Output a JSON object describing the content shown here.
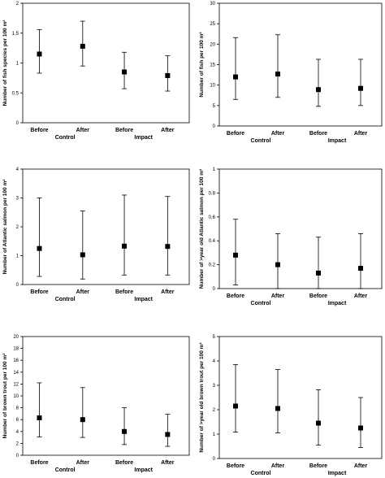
{
  "chart_data": [
    {
      "type": "scatter",
      "ylabel": "Number of fish species per 100 m²",
      "ylim": [
        0,
        2
      ],
      "yticks": [
        "0",
        "0.5",
        "1",
        "1.5",
        "2"
      ],
      "categories": [
        "Before",
        "After",
        "Before",
        "After"
      ],
      "groups": [
        "Control",
        "Impact"
      ],
      "values": [
        1.15,
        1.28,
        0.85,
        0.79
      ],
      "err_low": [
        0.83,
        0.95,
        0.57,
        0.53
      ],
      "err_high": [
        1.56,
        1.7,
        1.18,
        1.12
      ]
    },
    {
      "type": "scatter",
      "ylabel": "Number of fish per 100 m²",
      "ylim": [
        0,
        30
      ],
      "yticks": [
        "0",
        "5",
        "10",
        "15",
        "20",
        "25",
        "30"
      ],
      "categories": [
        "Before",
        "After",
        "Before",
        "After"
      ],
      "groups": [
        "Control",
        "Impact"
      ],
      "values": [
        12.0,
        12.7,
        8.9,
        9.2
      ],
      "err_low": [
        6.5,
        7.0,
        4.8,
        5.0
      ],
      "err_high": [
        21.6,
        22.3,
        16.3,
        16.3
      ]
    },
    {
      "type": "scatter",
      "ylabel": "Number of Atlantic salmon per 100 m²",
      "ylim": [
        0,
        4
      ],
      "yticks": [
        "0",
        "1",
        "2",
        "3",
        "4"
      ],
      "categories": [
        "Before",
        "After",
        "Before",
        "After"
      ],
      "groups": [
        "Control",
        "Impact"
      ],
      "values": [
        1.25,
        1.03,
        1.33,
        1.32
      ],
      "err_low": [
        0.28,
        0.19,
        0.33,
        0.33
      ],
      "err_high": [
        3.0,
        2.55,
        3.1,
        3.05
      ]
    },
    {
      "type": "scatter",
      "ylabel": "Number of >year old Atlantic salmon per 100 m²",
      "ylim": [
        0,
        1
      ],
      "yticks": [
        "0",
        "0.2",
        "0.4",
        "0.6",
        "0.8",
        "1"
      ],
      "categories": [
        "Before",
        "After",
        "Before",
        "After"
      ],
      "groups": [
        "Control",
        "Impact"
      ],
      "values": [
        0.28,
        0.2,
        0.13,
        0.17
      ],
      "err_low": [
        0.03,
        0.0,
        0.0,
        0.0
      ],
      "err_high": [
        0.58,
        0.46,
        0.43,
        0.46
      ]
    },
    {
      "type": "scatter",
      "ylabel": "Number of brown trout per 100 m²",
      "ylim": [
        0,
        20
      ],
      "yticks": [
        "0",
        "2",
        "4",
        "6",
        "8",
        "10",
        "12",
        "14",
        "16",
        "18",
        "20"
      ],
      "categories": [
        "Before",
        "After",
        "Before",
        "After"
      ],
      "groups": [
        "Control",
        "Impact"
      ],
      "values": [
        6.3,
        6.0,
        4.0,
        3.5
      ],
      "err_low": [
        3.1,
        3.0,
        1.8,
        1.5
      ],
      "err_high": [
        12.2,
        11.4,
        8.0,
        6.9
      ]
    },
    {
      "type": "scatter",
      "ylabel": "Number of >year old brown trout per 100 m²",
      "ylim": [
        0,
        5
      ],
      "yticks": [
        "0",
        "1",
        "2",
        "3",
        "4",
        "5"
      ],
      "categories": [
        "Before",
        "After",
        "Before",
        "After"
      ],
      "groups": [
        "Control",
        "Impact"
      ],
      "values": [
        2.15,
        2.05,
        1.45,
        1.25
      ],
      "err_low": [
        1.08,
        1.05,
        0.55,
        0.45
      ],
      "err_high": [
        3.85,
        3.65,
        2.82,
        2.5
      ]
    }
  ]
}
